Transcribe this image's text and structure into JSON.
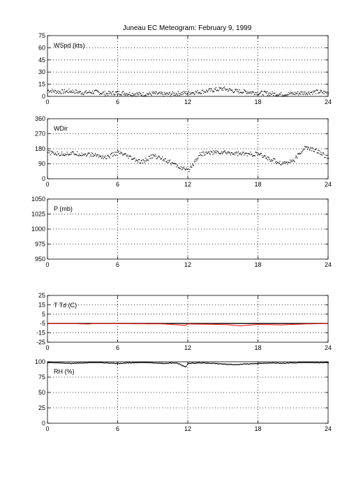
{
  "figure": {
    "title": "Juneau EC Meteogram:  February  9, 1999"
  },
  "colors": {
    "axis": "#000000",
    "data": "#000000",
    "dewpoint": "#ff0000",
    "grid": "#000000"
  },
  "chart_data": [
    {
      "type": "scatter",
      "label": "WSpd (kts)",
      "xlim": [
        0,
        24
      ],
      "ylim": [
        0,
        75
      ],
      "xticks": [
        0,
        6,
        12,
        18,
        24
      ],
      "yticks": [
        0,
        15,
        30,
        45,
        60,
        75
      ],
      "grid": true,
      "series": [
        {
          "x": [
            0,
            1,
            2,
            3,
            4,
            5,
            6,
            7,
            8,
            9,
            10,
            11,
            12,
            13,
            14,
            15,
            16,
            17,
            18,
            19,
            20,
            21,
            22,
            23,
            24
          ],
          "y": [
            8,
            6,
            7,
            5,
            6,
            4,
            5,
            4,
            3,
            4,
            3,
            4,
            5,
            6,
            8,
            10,
            7,
            6,
            5,
            4,
            3,
            4,
            5,
            6,
            5
          ]
        }
      ]
    },
    {
      "type": "scatter",
      "label": "WDir",
      "xlim": [
        0,
        24
      ],
      "ylim": [
        0,
        360
      ],
      "xticks": [
        0,
        6,
        12,
        18,
        24
      ],
      "yticks": [
        0,
        90,
        180,
        270,
        360
      ],
      "grid": true,
      "series": [
        {
          "x": [
            0,
            1,
            2,
            3,
            4,
            5,
            6,
            7,
            8,
            9,
            10,
            11,
            12,
            13,
            14,
            15,
            16,
            17,
            18,
            19,
            20,
            21,
            22,
            23,
            24
          ],
          "y": [
            160,
            150,
            155,
            150,
            145,
            130,
            160,
            130,
            100,
            140,
            120,
            80,
            50,
            150,
            160,
            160,
            155,
            150,
            150,
            120,
            95,
            110,
            190,
            170,
            130
          ]
        }
      ]
    },
    {
      "type": "line",
      "label": "P (mb)",
      "xlim": [
        0,
        24
      ],
      "ylim": [
        950,
        1050
      ],
      "xticks": [
        0,
        6,
        12,
        18,
        24
      ],
      "yticks": [
        950,
        975,
        1000,
        1025,
        1050
      ],
      "grid": true,
      "series": []
    },
    {
      "type": "line",
      "label": "T Td (C)",
      "xlim": [
        0,
        24
      ],
      "ylim": [
        -25,
        25
      ],
      "xticks": [
        0,
        6,
        12,
        18,
        24
      ],
      "yticks": [
        -25,
        -15,
        -5,
        5,
        15,
        25
      ],
      "grid": true,
      "series": [
        {
          "color": "#000000",
          "x": [
            0,
            2,
            4,
            6,
            8,
            10,
            12,
            14,
            16,
            18,
            20,
            22,
            24
          ],
          "y": [
            -5,
            -5,
            -5,
            -5,
            -5,
            -5,
            -5,
            -5,
            -5,
            -5,
            -5,
            -5,
            -5
          ]
        },
        {
          "color": "#ff0000",
          "x": [
            0,
            2,
            3.5,
            4,
            6,
            8,
            10,
            11.8,
            12,
            14,
            15.5,
            16,
            16.5,
            17.5,
            18,
            20,
            22,
            24
          ],
          "y": [
            -5,
            -5,
            -5.6,
            -5,
            -5.2,
            -5.3,
            -5.5,
            -7,
            -5.5,
            -5.8,
            -6.3,
            -7,
            -7.5,
            -6.5,
            -6,
            -6.5,
            -5.5,
            -5
          ]
        }
      ]
    },
    {
      "type": "scatter",
      "label": "RH (%)",
      "xlim": [
        0,
        24
      ],
      "ylim": [
        0,
        100
      ],
      "xticks": [
        0,
        6,
        12,
        18,
        24
      ],
      "yticks": [
        0,
        25,
        50,
        75,
        100
      ],
      "grid": true,
      "series": [
        {
          "x": [
            0,
            1,
            2,
            3,
            4,
            5,
            6,
            7,
            8,
            9,
            10,
            11,
            11.8,
            12,
            13,
            14,
            15,
            16,
            17,
            18,
            19,
            20,
            21,
            22,
            23,
            24
          ],
          "y": [
            100,
            99,
            98,
            99,
            100,
            99,
            98,
            99,
            100,
            99,
            98,
            99,
            92,
            98,
            99,
            98,
            97,
            96,
            97,
            98,
            99,
            98,
            99,
            100,
            99,
            100
          ]
        }
      ]
    }
  ]
}
